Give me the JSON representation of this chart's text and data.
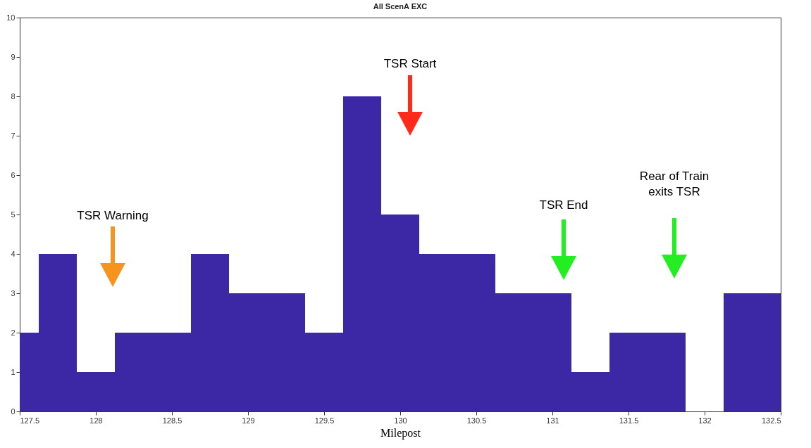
{
  "chart_data": {
    "type": "histogram",
    "title": "All ScenA EXC",
    "xlabel": "Milepost",
    "bins": [
      127.5,
      127.625,
      127.875,
      128.125,
      128.375,
      128.625,
      128.875,
      129.125,
      129.375,
      129.625,
      129.875,
      130.125,
      130.375,
      130.625,
      130.875,
      131.125,
      131.375,
      131.625,
      131.875,
      132.125,
      132.375,
      132.5
    ],
    "values": [
      2,
      4,
      1,
      2,
      2,
      4,
      3,
      3,
      2,
      8,
      5,
      4,
      4,
      3,
      3,
      1,
      2,
      2,
      0,
      3,
      3
    ],
    "color": "#3c28a4",
    "xlim": [
      127.5,
      132.5
    ],
    "xticks": [
      127.5,
      128,
      128.5,
      129,
      129.5,
      130,
      130.5,
      131,
      131.5,
      132,
      132.5
    ],
    "ylim": [
      0,
      10
    ],
    "yticks": [
      0,
      1,
      2,
      3,
      4,
      5,
      6,
      7,
      8,
      9,
      10
    ],
    "grid": false,
    "annotations": [
      "TSR Warning",
      "TSR Start",
      "TSR End",
      "Rear of Train\nexits TSR"
    ]
  }
}
